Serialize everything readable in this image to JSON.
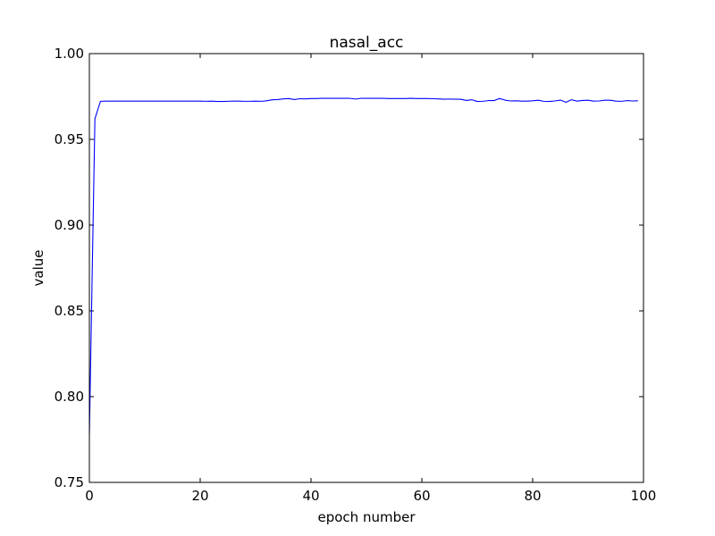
{
  "chart_data": {
    "type": "line",
    "title": "nasal_acc",
    "xlabel": "epoch number",
    "ylabel": "value",
    "xlim": [
      0,
      100
    ],
    "ylim": [
      0.75,
      1.0
    ],
    "xticks": [
      0,
      20,
      40,
      60,
      80,
      100
    ],
    "xtick_labels": [
      "0",
      "20",
      "40",
      "60",
      "80",
      "100"
    ],
    "yticks": [
      0.75,
      0.8,
      0.85,
      0.9,
      0.95,
      1.0
    ],
    "ytick_labels": [
      "0.75",
      "0.80",
      "0.85",
      "0.90",
      "0.95",
      "1.00"
    ],
    "grid": false,
    "series": [
      {
        "color": "#0000ff",
        "x": [
          0,
          1,
          2,
          3,
          4,
          5,
          6,
          7,
          8,
          9,
          10,
          11,
          12,
          13,
          14,
          15,
          16,
          17,
          18,
          19,
          20,
          21,
          22,
          23,
          24,
          25,
          26,
          27,
          28,
          29,
          30,
          31,
          32,
          33,
          34,
          35,
          36,
          37,
          38,
          39,
          40,
          41,
          42,
          43,
          44,
          45,
          46,
          47,
          48,
          49,
          50,
          51,
          52,
          53,
          54,
          55,
          56,
          57,
          58,
          59,
          60,
          61,
          62,
          63,
          64,
          65,
          66,
          67,
          68,
          69,
          70,
          71,
          72,
          73,
          74,
          75,
          76,
          77,
          78,
          79,
          80,
          81,
          82,
          83,
          84,
          85,
          86,
          87,
          88,
          89,
          90,
          91,
          92,
          93,
          94,
          95,
          96,
          97,
          98,
          99
        ],
        "values": [
          0.778,
          0.962,
          0.9722,
          0.9723,
          0.9723,
          0.9723,
          0.9723,
          0.9723,
          0.9723,
          0.9723,
          0.9723,
          0.9723,
          0.9723,
          0.9723,
          0.9723,
          0.9723,
          0.9723,
          0.9723,
          0.9723,
          0.9723,
          0.9723,
          0.9722,
          0.9723,
          0.9721,
          0.9721,
          0.9722,
          0.9723,
          0.9723,
          0.9722,
          0.9722,
          0.9723,
          0.9722,
          0.9725,
          0.9731,
          0.9732,
          0.9736,
          0.9738,
          0.9732,
          0.9737,
          0.9736,
          0.9738,
          0.9738,
          0.9739,
          0.9739,
          0.9739,
          0.9739,
          0.9739,
          0.9739,
          0.9735,
          0.9739,
          0.9739,
          0.9739,
          0.9739,
          0.9739,
          0.9738,
          0.9738,
          0.9738,
          0.9738,
          0.9739,
          0.9738,
          0.9738,
          0.9738,
          0.9737,
          0.9736,
          0.9734,
          0.9735,
          0.9734,
          0.9734,
          0.9727,
          0.9731,
          0.9721,
          0.9722,
          0.9726,
          0.9726,
          0.9738,
          0.9729,
          0.9724,
          0.9725,
          0.9723,
          0.9723,
          0.9725,
          0.9728,
          0.9722,
          0.9721,
          0.9724,
          0.9729,
          0.9716,
          0.9731,
          0.9723,
          0.9727,
          0.9728,
          0.9723,
          0.9724,
          0.9728,
          0.9728,
          0.9723,
          0.9722,
          0.9726,
          0.9724,
          0.9725
        ]
      }
    ]
  }
}
